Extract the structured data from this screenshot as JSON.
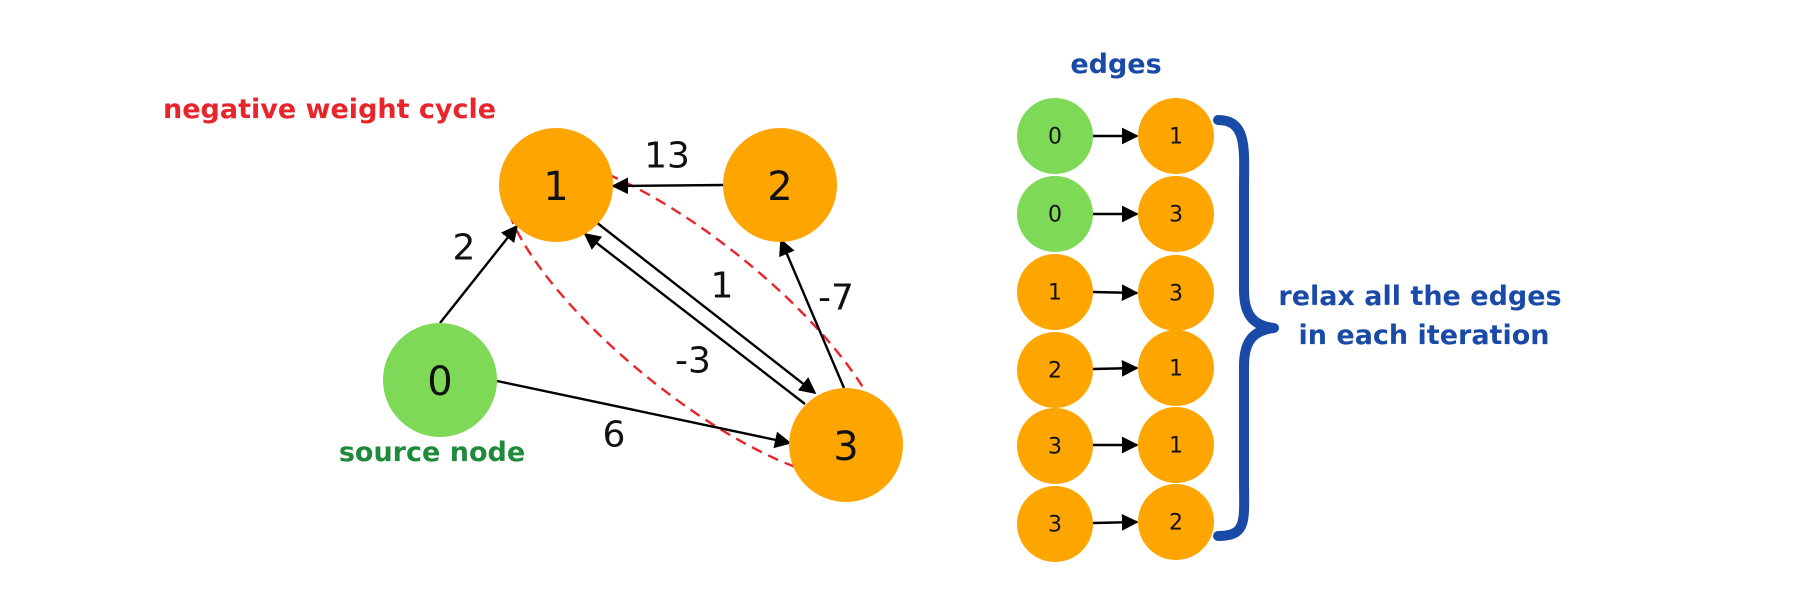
{
  "annotations": {
    "cycle_label": "negative weight cycle",
    "source_label": "source node",
    "edges_title": "edges",
    "relax_line1": "relax all the edges",
    "relax_line2": "in each iteration"
  },
  "colors": {
    "source_node": "#7ed957",
    "node": "#ffa500",
    "cycle": "#e8252b",
    "source_text": "#1f8a3b",
    "blue_text": "#1a4aa8",
    "brace": "#1a4aa8"
  },
  "graph": {
    "nodes": [
      "0",
      "1",
      "2",
      "3"
    ],
    "edges": [
      {
        "from": "0",
        "to": "1",
        "weight": "2"
      },
      {
        "from": "2",
        "to": "1",
        "weight": "13"
      },
      {
        "from": "1",
        "to": "3",
        "weight": "1"
      },
      {
        "from": "3",
        "to": "1",
        "weight": "-3"
      },
      {
        "from": "3",
        "to": "2",
        "weight": "-7"
      },
      {
        "from": "0",
        "to": "3",
        "weight": "6"
      }
    ]
  },
  "edge_list": [
    {
      "from": "0",
      "to": "1"
    },
    {
      "from": "0",
      "to": "3"
    },
    {
      "from": "1",
      "to": "3"
    },
    {
      "from": "2",
      "to": "1"
    },
    {
      "from": "3",
      "to": "1"
    },
    {
      "from": "3",
      "to": "2"
    }
  ]
}
